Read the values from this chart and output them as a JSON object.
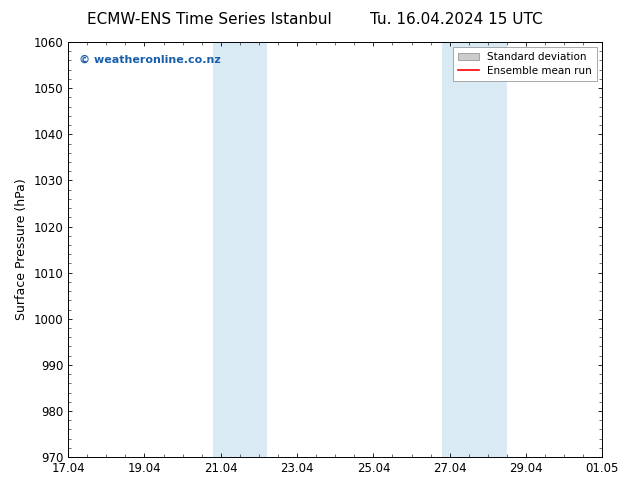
{
  "title_left": "ECMW-ENS Time Series Istanbul",
  "title_right": "Tu. 16.04.2024 15 UTC",
  "ylabel": "Surface Pressure (hPa)",
  "ylim": [
    970,
    1060
  ],
  "yticks": [
    970,
    980,
    990,
    1000,
    1010,
    1020,
    1030,
    1040,
    1050,
    1060
  ],
  "xtick_labels": [
    "17.04",
    "19.04",
    "21.04",
    "23.04",
    "25.04",
    "27.04",
    "29.04",
    "01.05"
  ],
  "xtick_positions": [
    0,
    2,
    4,
    6,
    8,
    10,
    12,
    14
  ],
  "shade_regions": [
    {
      "x_start": 3.8,
      "x_end": 5.2
    },
    {
      "x_start": 9.8,
      "x_end": 11.5
    }
  ],
  "shade_color": "#daeaf5",
  "watermark": "© weatheronline.co.nz",
  "watermark_color": "#1a5fac",
  "title_fontsize": 11,
  "axis_fontsize": 9,
  "tick_fontsize": 8.5,
  "background_color": "#ffffff",
  "legend_std_color": "#cccccc",
  "legend_mean_color": "#ff0000",
  "x_min": 0,
  "x_max": 14
}
